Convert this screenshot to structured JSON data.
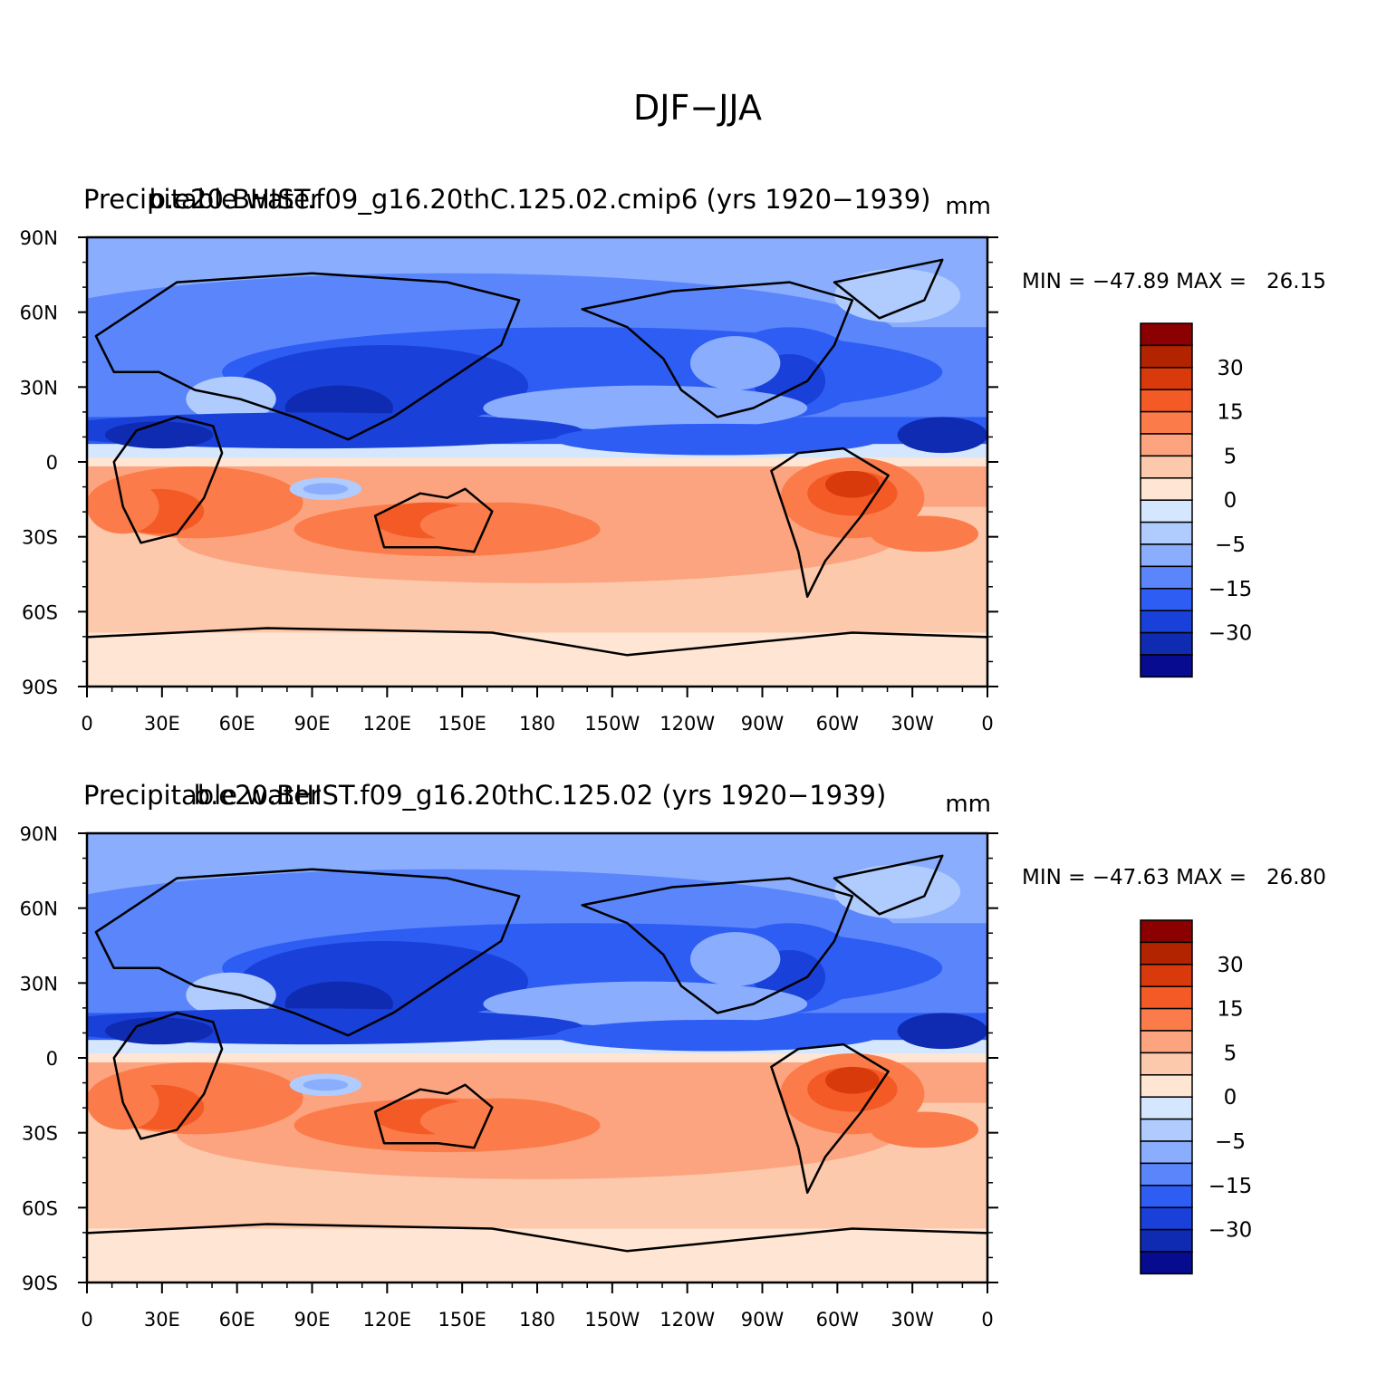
{
  "figure_title": "DJF−JJA",
  "chart_data": [
    {
      "type": "heatmap",
      "left_title": "Precipitable water",
      "center_title": "b.e20.BHIST.f09_g16.20thC.125.02.cmip6 (yrs 1920−1939)",
      "units": "mm",
      "min_max_text": "MIN = −47.89 MAX =   26.15",
      "min": -47.89,
      "max": 26.15,
      "lat_labels": [
        "90N",
        "60N",
        "30N",
        "0",
        "30S",
        "60S",
        "90S"
      ],
      "lon_labels": [
        "0",
        "30E",
        "60E",
        "90E",
        "120E",
        "150E",
        "180",
        "150W",
        "120W",
        "90W",
        "60W",
        "30W",
        "0"
      ]
    },
    {
      "type": "heatmap",
      "left_title": "Precipitable water",
      "center_title": "b.e20.BHIST.f09_g16.20thC.125.02 (yrs 1920−1939)",
      "units": "mm",
      "min_max_text": "MIN = −47.63 MAX =   26.80",
      "min": -47.63,
      "max": 26.8,
      "lat_labels": [
        "90N",
        "60N",
        "30N",
        "0",
        "30S",
        "60S",
        "90S"
      ],
      "lon_labels": [
        "0",
        "30E",
        "60E",
        "90E",
        "120E",
        "150E",
        "180",
        "150W",
        "120W",
        "90W",
        "60W",
        "30W",
        "0"
      ]
    }
  ],
  "colorbar": {
    "labels": [
      "30",
      "15",
      "5",
      "0",
      "−5",
      "−15",
      "−30"
    ],
    "colors_top_to_bottom": [
      "#8b0000",
      "#b22400",
      "#d83a0c",
      "#f45a26",
      "#fb7c4a",
      "#fca47f",
      "#fdc9ac",
      "#fee5d4",
      "#d5e7fe",
      "#b0ccfe",
      "#8aaefd",
      "#5b86fb",
      "#2e5df4",
      "#1a40da",
      "#0e2bb2",
      "#060b8f"
    ]
  }
}
